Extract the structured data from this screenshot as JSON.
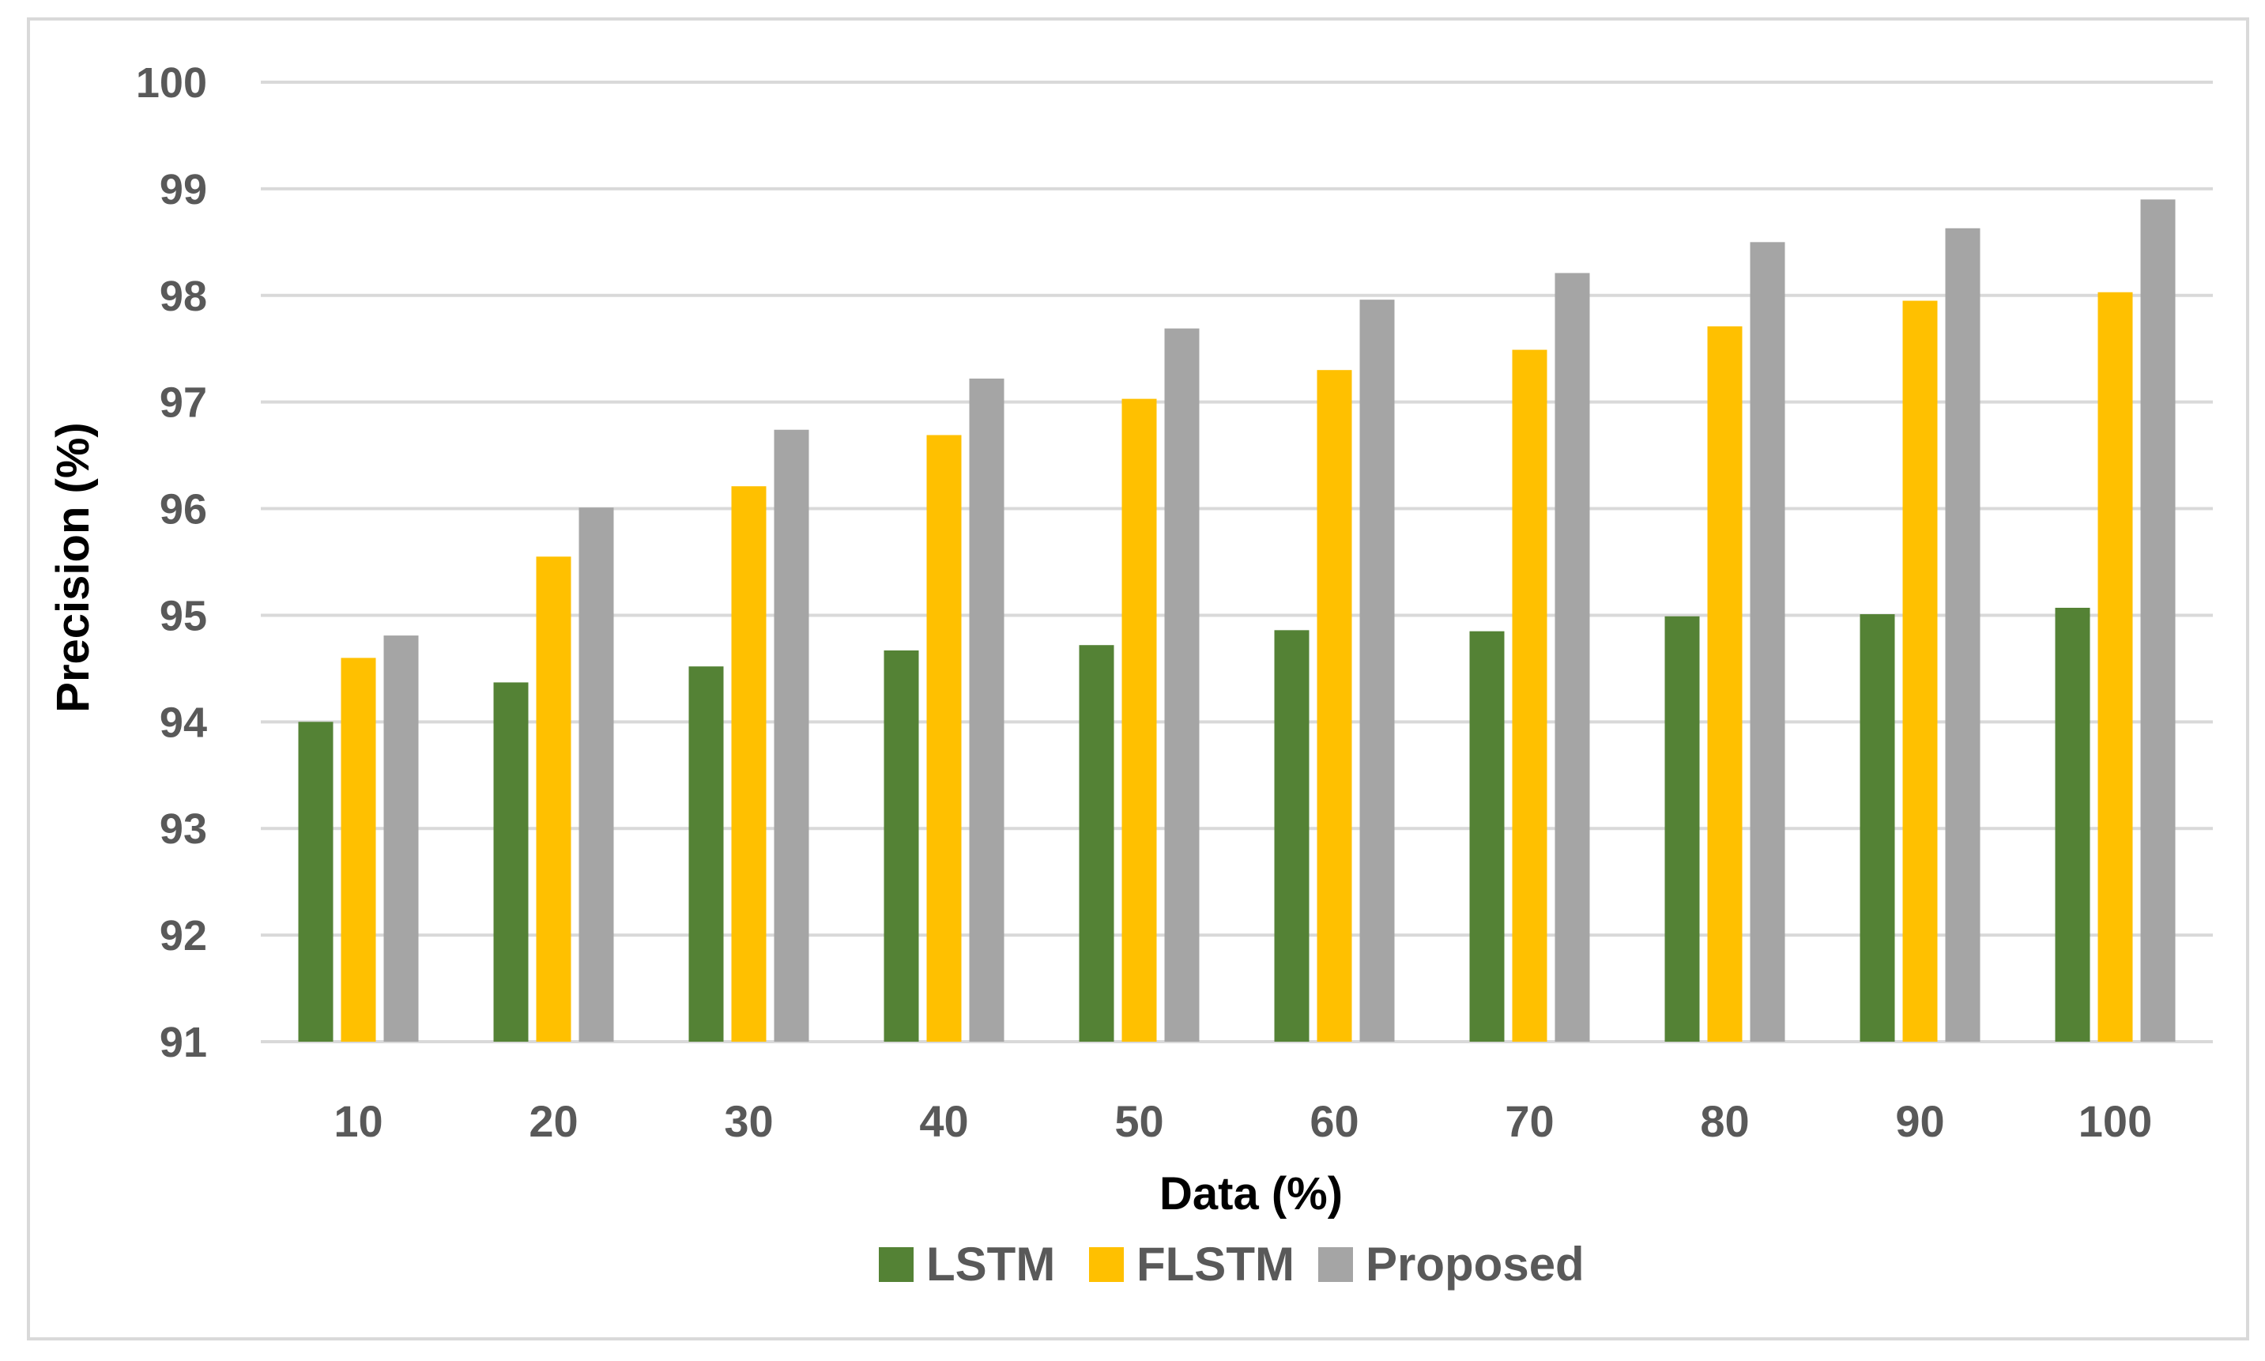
{
  "chart_data": {
    "type": "bar",
    "title": "",
    "xlabel": "Data (%)",
    "ylabel": "Precision (%)",
    "ylim": [
      91,
      100
    ],
    "yticks": [
      "91",
      "92",
      "93",
      "94",
      "95",
      "96",
      "97",
      "98",
      "99",
      "100"
    ],
    "grid": true,
    "legend_position": "bottom",
    "categories": [
      "10",
      "20",
      "30",
      "40",
      "50",
      "60",
      "70",
      "80",
      "90",
      "100"
    ],
    "series": [
      {
        "name": "LSTM",
        "color": "#548235",
        "values": [
          94.0,
          94.37,
          94.52,
          94.67,
          94.72,
          94.86,
          94.85,
          94.99,
          95.01,
          95.07
        ]
      },
      {
        "name": "FLSTM",
        "color": "#FFC000",
        "values": [
          94.6,
          95.55,
          96.21,
          96.69,
          97.03,
          97.3,
          97.49,
          97.71,
          97.95,
          98.03
        ]
      },
      {
        "name": "Proposed",
        "color": "#A5A5A5",
        "values": [
          94.81,
          96.01,
          96.74,
          97.22,
          97.69,
          97.96,
          98.21,
          98.5,
          98.63,
          98.9
        ]
      }
    ]
  }
}
